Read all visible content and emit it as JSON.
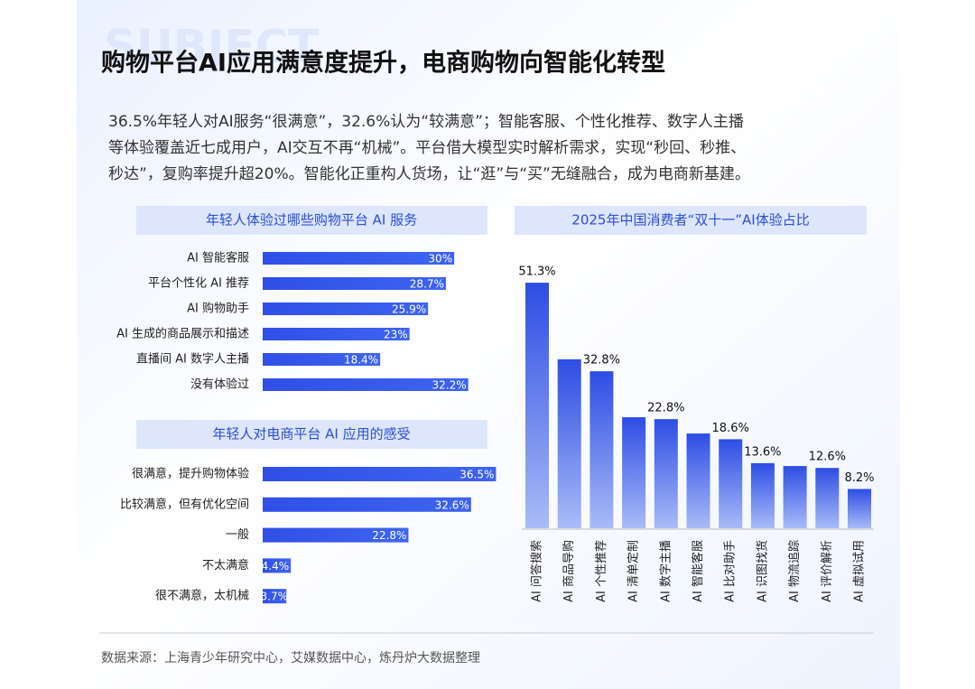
{
  "watermark": "SUBJECT",
  "title": "购物平台AI应用满意度提升，电商购物向智能化转型",
  "intro": [
    "36.5%年轻人对AI服务“很满意”，32.6%认为“较满意”；智能客服、个性化推荐、数字人主播",
    "等体验覆盖近七成用户，AI交互不再“机械”。平台借大模型实时解析需求，实现“秒回、秒推、",
    "秒达”，复购率提升超20%。智能化正重构人货场，让“逛”与“买”无缝融合，成为电商新基建。"
  ],
  "source": "数据来源：上海青少年研究中心，艾媒数据中心，炼丹炉大数据整理",
  "chart_data": [
    {
      "type": "bar",
      "orientation": "horizontal",
      "title": "年轻人体验过哪些购物平台 AI 服务",
      "color": "#3556e8",
      "categories": [
        "AI 智能客服",
        "平台个性化 AI 推荐",
        "AI 购物助手",
        "AI 生成的商品展示和描述",
        "直播间 AI 数字人主播",
        "没有体验过"
      ],
      "values": [
        30,
        28.7,
        25.9,
        23,
        18.4,
        32.2
      ],
      "value_labels": [
        "30%",
        "28.7%",
        "25.9%",
        "23%",
        "18.4%",
        "32.2%"
      ]
    },
    {
      "type": "bar",
      "orientation": "horizontal",
      "title": "年轻人对电商平台 AI 应用的感受",
      "color": "#3556e8",
      "categories": [
        "很满意，提升购物体验",
        "比较满意，但有优化空间",
        "一般",
        "不太满意",
        "很不满意，太机械"
      ],
      "values": [
        36.5,
        32.6,
        22.8,
        4.4,
        3.7
      ],
      "value_labels": [
        "36.5%",
        "32.6%",
        "22.8%",
        "4.4%",
        "3.7%"
      ]
    },
    {
      "type": "bar",
      "orientation": "vertical",
      "title": "2025年中国消费者“双十一”AI体验占比",
      "color": "#3556e8",
      "categories": [
        "AI 问答搜索",
        "AI 商品导购",
        "AI 个性推荐",
        "AI 清单定制",
        "AI 数字主播",
        "AI 智能客服",
        "AI 比对助手",
        "AI 识图找货",
        "AI 物流追踪",
        "AI 评价解析",
        "AI 虚拟试用"
      ],
      "values": [
        51.3,
        35.3,
        32.8,
        23.2,
        22.8,
        19.8,
        18.6,
        13.6,
        13.0,
        12.6,
        8.2
      ],
      "value_labels": [
        "51.3%",
        null,
        "32.8%",
        null,
        "22.8%",
        null,
        "18.6%",
        "13.6%",
        null,
        "12.6%",
        "8.2%"
      ]
    }
  ]
}
